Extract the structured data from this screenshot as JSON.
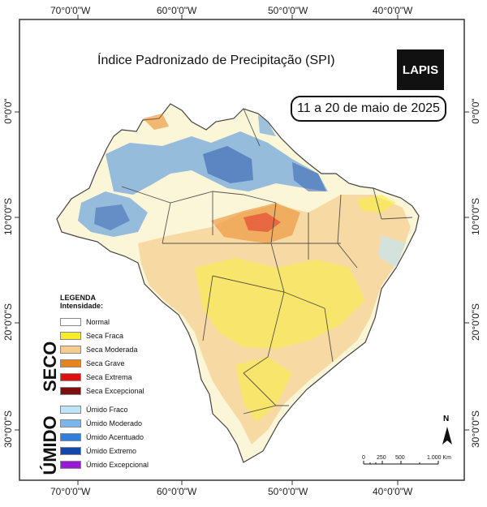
{
  "map": {
    "title": "Índice Padronizado de Precipitação (SPI)",
    "period": "11 a 20 de maio de 2025",
    "logo_text": "LAPIS",
    "north_label": "N"
  },
  "axes": {
    "top_lon": [
      "70°0'0\"W",
      "60°0'0\"W",
      "50°0'0\"W",
      "40°0'0\"W"
    ],
    "bottom_lon": [
      "70°0'0\"W",
      "60°0'0\"W",
      "50°0'0\"W",
      "40°0'0\"W"
    ],
    "left_lat": [
      "0°0'0\"",
      "10°0'0\"S",
      "20°0'0\"S",
      "30°0'0\"S"
    ],
    "right_lat": [
      "0°0'0\"",
      "10°0'0\"S",
      "20°0'0\"S",
      "30°0'0\"S"
    ]
  },
  "legend": {
    "heading": "LEGENDA",
    "subheading": "Intensidade:",
    "normal": {
      "label": "Normal",
      "color": "#ffffff"
    },
    "seco_label": "SECO",
    "umido_label": "ÚMIDO",
    "seco": [
      {
        "label": "Seca Fraca",
        "color": "#f7ec2c"
      },
      {
        "label": "Seca Moderada",
        "color": "#f6cc8c"
      },
      {
        "label": "Seca Grave",
        "color": "#e8821e"
      },
      {
        "label": "Seca Extrema",
        "color": "#e01010"
      },
      {
        "label": "Seca Excepcional",
        "color": "#7a1010"
      }
    ],
    "umido": [
      {
        "label": "Úmido Fraco",
        "color": "#bfe3f7"
      },
      {
        "label": "Úmido Moderado",
        "color": "#7ab6ea"
      },
      {
        "label": "Úmido Acentuado",
        "color": "#2e7fe0"
      },
      {
        "label": "Úmido Extremo",
        "color": "#1448a8"
      },
      {
        "label": "Úmido Excepcional",
        "color": "#9a18d8"
      }
    ]
  },
  "scale_bar": {
    "labels": [
      "0",
      "250",
      "500",
      "1.000 Km"
    ]
  }
}
